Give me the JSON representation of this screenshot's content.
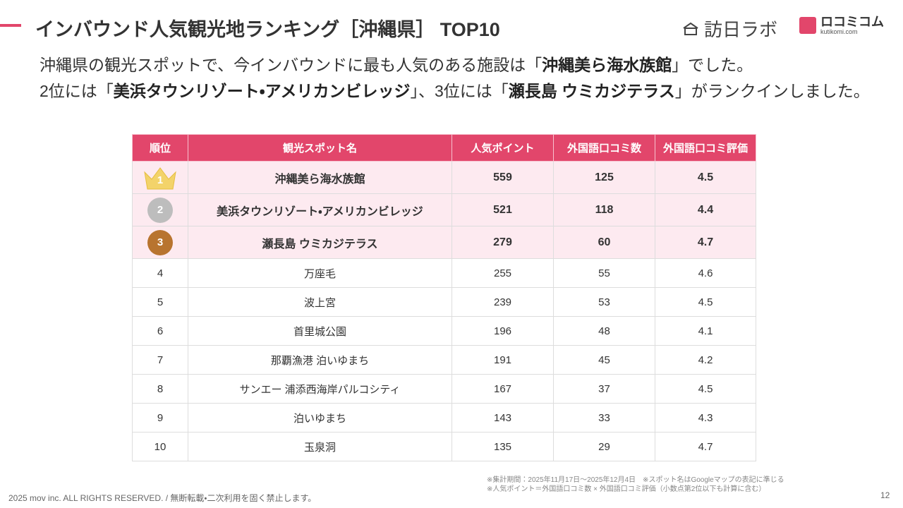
{
  "header": {
    "title": "インバウンド人気観光地ランキング［沖縄県］ TOP10",
    "logo1": "訪日ラボ",
    "logo2": "ロコミコム",
    "logo2_sub": "kutikomi.com"
  },
  "intro": {
    "lines": [
      [
        {
          "text": "沖縄県の観光スポットで、今インバウンドに最も人気のある施設は「",
          "bold": false
        },
        {
          "text": "沖縄美ら海水族館",
          "bold": true
        },
        {
          "text": "」でした。",
          "bold": false
        }
      ],
      [
        {
          "text": "2位には「",
          "bold": false
        },
        {
          "text": "美浜タウンリゾート・アメリカンビレッジ",
          "bold": true
        },
        {
          "text": "」、3位には「",
          "bold": false
        },
        {
          "text": "瀬長島 ウミカジテラス",
          "bold": true
        },
        {
          "text": "」がランクインしました。",
          "bold": false
        }
      ]
    ]
  },
  "table": {
    "columns": [
      "順位",
      "観光スポット名",
      "人気ポイント",
      "外国語口コミ数",
      "外国語口コミ評価"
    ],
    "rows": [
      {
        "rank": 1,
        "medal": "gold",
        "name": "沖縄美ら海水族館",
        "points": 559,
        "reviews": 125,
        "rating": 4.5
      },
      {
        "rank": 2,
        "medal": "silver",
        "name": "美浜タウンリゾート・アメリカンビレッジ",
        "points": 521,
        "reviews": 118,
        "rating": 4.4
      },
      {
        "rank": 3,
        "medal": "bronze",
        "name": "瀬長島 ウミカジテラス",
        "points": 279,
        "reviews": 60,
        "rating": 4.7
      },
      {
        "rank": 4,
        "name": "万座毛",
        "points": 255,
        "reviews": 55,
        "rating": 4.6
      },
      {
        "rank": 5,
        "name": "波上宮",
        "points": 239,
        "reviews": 53,
        "rating": 4.5
      },
      {
        "rank": 6,
        "name": "首里城公園",
        "points": 196,
        "reviews": 48,
        "rating": 4.1
      },
      {
        "rank": 7,
        "name": "那覇漁港 泊いゆまち",
        "points": 191,
        "reviews": 45,
        "rating": 4.2
      },
      {
        "rank": 8,
        "name": "サンエー 浦添西海岸パルコシティ",
        "points": 167,
        "reviews": 37,
        "rating": 4.5
      },
      {
        "rank": 9,
        "name": "泊いゆまち",
        "points": 143,
        "reviews": 33,
        "rating": 4.3
      },
      {
        "rank": 10,
        "name": "玉泉洞",
        "points": 135,
        "reviews": 29,
        "rating": 4.7
      }
    ]
  },
  "notes": [
    "※集計期間：2025年11月17日〜2025年12月4日　※スポット名はGoogleマップの表記に準じる",
    "※人気ポイント＝外国語口コミ数 × 外国語口コミ評価（小数点第2位以下も計算に含む）"
  ],
  "footer": {
    "copyright": "2025 mov inc. ALL RIGHTS RESERVED. / 無断転載・二次利用を固く禁止します。",
    "page": 12
  }
}
